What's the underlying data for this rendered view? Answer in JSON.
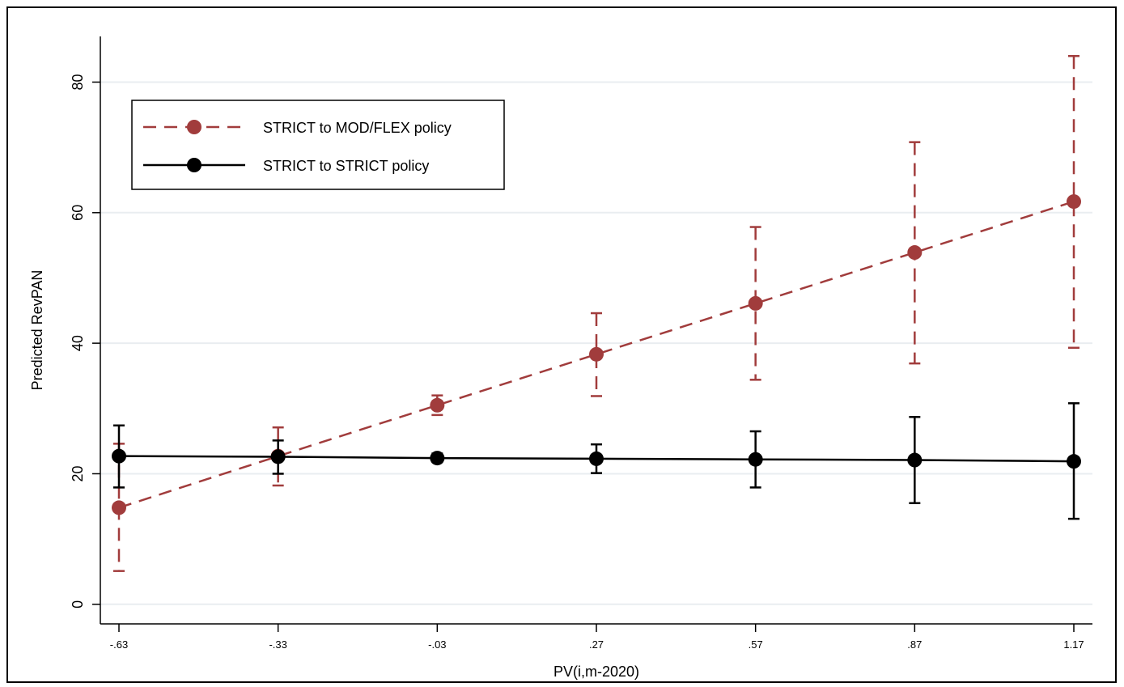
{
  "chart_data": {
    "type": "line",
    "xlabel": "PV(i,m-2020)",
    "ylabel": "Predicted RevPAN",
    "x": [
      -0.63,
      -0.33,
      -0.03,
      0.27,
      0.57,
      0.87,
      1.17
    ],
    "x_tick_labels": [
      "-.63",
      "-.33",
      "-.03",
      ".27",
      ".57",
      ".87",
      "1.17"
    ],
    "yticks": [
      0,
      20,
      40,
      60,
      80
    ],
    "y_tick_labels": [
      "0",
      "20",
      "40",
      "60",
      "80"
    ],
    "ylim": [
      -3,
      87
    ],
    "grid": true,
    "legend_position": "top-left",
    "series": [
      {
        "name": "STRICT to MOD/FLEX policy",
        "color": "#a13c3c",
        "line_style": "dashed",
        "values": [
          14.8,
          22.7,
          30.5,
          38.3,
          46.1,
          53.9,
          61.7
        ],
        "ci_low": [
          5.1,
          18.2,
          29.0,
          31.9,
          34.4,
          36.9,
          39.3
        ],
        "ci_high": [
          24.6,
          27.1,
          32.0,
          44.6,
          57.8,
          70.8,
          84.0
        ]
      },
      {
        "name": "STRICT to STRICT policy",
        "color": "#000000",
        "line_style": "solid",
        "values": [
          22.7,
          22.6,
          22.4,
          22.3,
          22.2,
          22.1,
          21.9
        ],
        "ci_low": [
          17.9,
          20.0,
          21.8,
          20.1,
          17.9,
          15.5,
          13.1
        ],
        "ci_high": [
          27.4,
          25.1,
          23.1,
          24.5,
          26.5,
          28.7,
          30.8
        ]
      }
    ]
  }
}
